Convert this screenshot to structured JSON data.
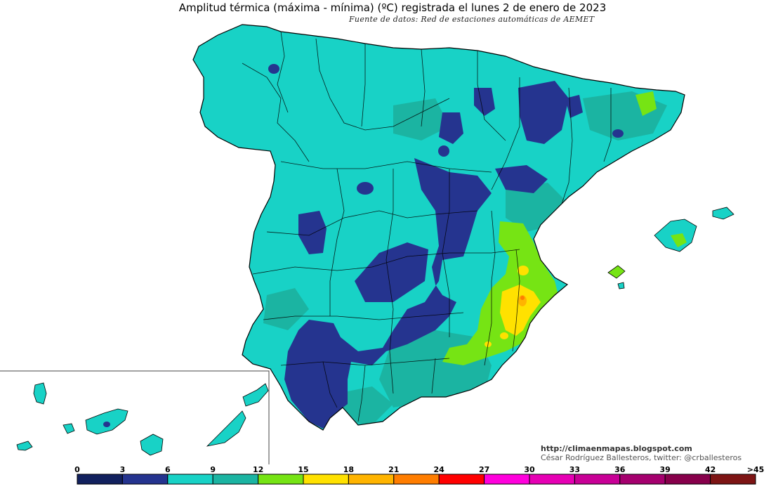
{
  "header": {
    "title": "Amplitud térmica (máxima - mínima) (ºC) registrada el lunes 2 de enero de 2023",
    "subtitle": "Fuente de datos: Red de estaciones automáticas de AEMET"
  },
  "credits": {
    "url": "http://climaenmapas.blogspot.com",
    "author": "César Rodríguez Ballesteros, twitter: @crballesteros"
  },
  "legend": {
    "unit": "ºC",
    "ticks": [
      "0",
      "3",
      "6",
      "9",
      "12",
      "15",
      "18",
      "21",
      "24",
      "27",
      "30",
      "33",
      "36",
      "39",
      "42",
      ">45"
    ],
    "colors": [
      "#12215e",
      "#25348f",
      "#18d2c6",
      "#1bb4a2",
      "#76e414",
      "#ffe100",
      "#ffb400",
      "#ff7d00",
      "#ff0000",
      "#ff00dc",
      "#e600b4",
      "#c80096",
      "#a5006e",
      "#87004b",
      "#7d1414"
    ]
  },
  "regions": {
    "peninsula": "Península Ibérica (España)",
    "balearic": "Islas Baleares",
    "canary": "Islas Canarias"
  },
  "palette": {
    "base": "#18d2c6",
    "low": "#25348f",
    "mid": "#1bb4a2",
    "warm": "#76e414",
    "hot": "#ffe100",
    "hotter": "#ffb400",
    "peak": "#ff7d00"
  }
}
